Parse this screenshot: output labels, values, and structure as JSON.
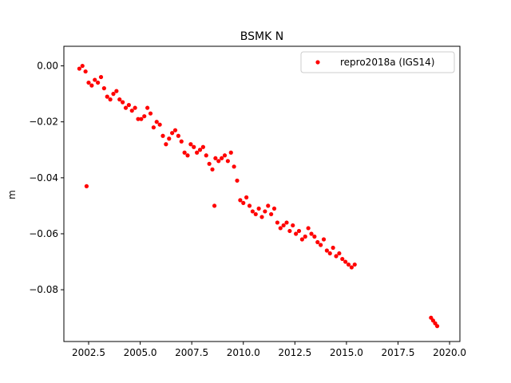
{
  "chart_data": {
    "type": "scatter",
    "title": "BSMK N",
    "xlabel": "",
    "ylabel": "m",
    "xlim": [
      2001.3,
      2020.5
    ],
    "ylim": [
      -0.0985,
      0.007
    ],
    "xticks": [
      2002.5,
      2005.0,
      2007.5,
      2010.0,
      2012.5,
      2015.0,
      2017.5,
      2020.0
    ],
    "xtick_labels": [
      "2002.5",
      "2005.0",
      "2007.5",
      "2010.0",
      "2012.5",
      "2015.0",
      "2017.5",
      "2020.0"
    ],
    "yticks": [
      0.0,
      -0.02,
      -0.04,
      -0.06,
      -0.08
    ],
    "ytick_labels": [
      "0.00",
      "−0.02",
      "−0.04",
      "−0.06",
      "−0.08"
    ],
    "legend": {
      "position": "top-right",
      "entries": [
        "repro2018a (IGS14)"
      ]
    },
    "grid": false,
    "series": [
      {
        "name": "repro2018a (IGS14)",
        "color": "#ff0000",
        "marker": "circle",
        "x": [
          2002.05,
          2002.2,
          2002.35,
          2002.5,
          2002.65,
          2002.8,
          2002.95,
          2003.1,
          2003.25,
          2003.4,
          2003.55,
          2003.7,
          2003.85,
          2004.0,
          2004.15,
          2004.3,
          2004.45,
          2004.6,
          2004.75,
          2004.9,
          2005.05,
          2005.2,
          2005.35,
          2005.5,
          2005.65,
          2005.8,
          2005.95,
          2006.1,
          2006.25,
          2006.4,
          2006.55,
          2006.7,
          2006.85,
          2007.0,
          2007.15,
          2007.3,
          2007.45,
          2007.6,
          2007.75,
          2007.9,
          2008.05,
          2008.2,
          2008.35,
          2008.5,
          2008.65,
          2008.8,
          2008.95,
          2009.1,
          2009.25,
          2009.4,
          2009.55,
          2009.7,
          2009.85,
          2010.0,
          2010.15,
          2010.3,
          2010.45,
          2010.6,
          2010.75,
          2010.9,
          2011.05,
          2011.2,
          2011.35,
          2011.5,
          2011.65,
          2011.8,
          2011.95,
          2012.1,
          2012.25,
          2012.4,
          2012.55,
          2012.7,
          2012.85,
          2013.0,
          2013.15,
          2013.3,
          2013.45,
          2013.6,
          2013.75,
          2013.9,
          2014.05,
          2014.2,
          2014.35,
          2014.5,
          2014.65,
          2014.8,
          2014.95,
          2015.1,
          2015.25,
          2015.4,
          2019.1,
          2019.2,
          2019.3,
          2019.4,
          2002.4,
          2008.6
        ],
        "y": [
          -0.001,
          0.0,
          -0.002,
          -0.006,
          -0.007,
          -0.005,
          -0.006,
          -0.004,
          -0.008,
          -0.011,
          -0.012,
          -0.01,
          -0.009,
          -0.012,
          -0.013,
          -0.015,
          -0.014,
          -0.016,
          -0.015,
          -0.019,
          -0.019,
          -0.018,
          -0.015,
          -0.017,
          -0.022,
          -0.02,
          -0.021,
          -0.025,
          -0.028,
          -0.026,
          -0.024,
          -0.023,
          -0.025,
          -0.027,
          -0.031,
          -0.032,
          -0.028,
          -0.029,
          -0.031,
          -0.03,
          -0.029,
          -0.032,
          -0.035,
          -0.037,
          -0.033,
          -0.034,
          -0.033,
          -0.032,
          -0.034,
          -0.031,
          -0.036,
          -0.041,
          -0.048,
          -0.049,
          -0.047,
          -0.05,
          -0.052,
          -0.053,
          -0.051,
          -0.054,
          -0.052,
          -0.05,
          -0.053,
          -0.051,
          -0.056,
          -0.058,
          -0.057,
          -0.056,
          -0.059,
          -0.057,
          -0.06,
          -0.059,
          -0.062,
          -0.061,
          -0.058,
          -0.06,
          -0.061,
          -0.063,
          -0.064,
          -0.062,
          -0.066,
          -0.067,
          -0.065,
          -0.068,
          -0.067,
          -0.069,
          -0.07,
          -0.071,
          -0.072,
          -0.071,
          -0.09,
          -0.091,
          -0.092,
          -0.093,
          -0.043,
          -0.05
        ]
      }
    ]
  }
}
